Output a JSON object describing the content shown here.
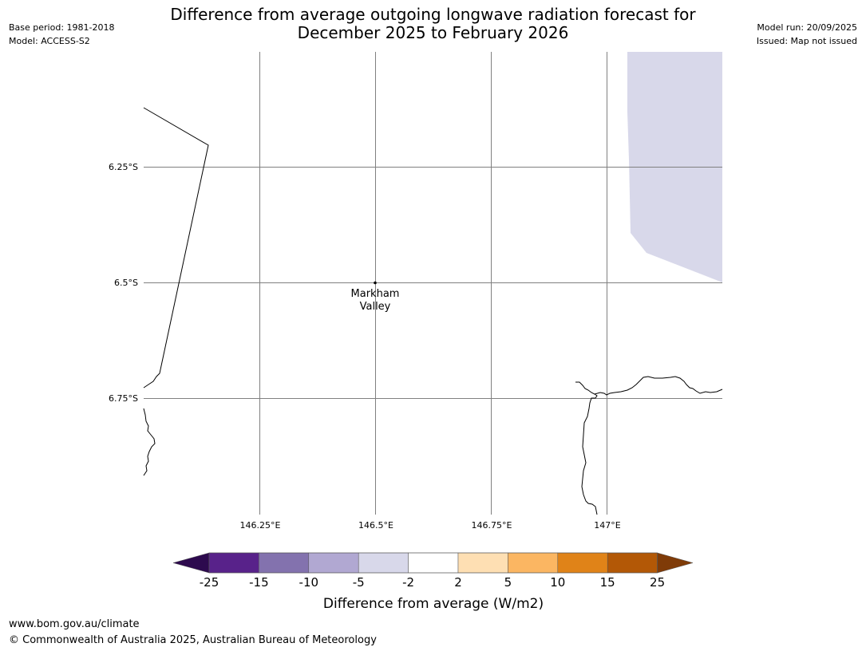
{
  "header": {
    "title_line1": "Difference from average outgoing longwave radiation forecast for",
    "title_line2": "December 2025 to February 2026",
    "base_period": "Base period: 1981-2018",
    "model": "Model: ACCESS-S2",
    "model_run": "Model run: 20/09/2025",
    "issued": "Issued: Map not issued"
  },
  "map": {
    "lat_labels": [
      "6.25°S",
      "6.5°S",
      "6.75°S"
    ],
    "lon_labels": [
      "146.25°E",
      "146.5°E",
      "146.75°E",
      "147°E"
    ],
    "place_name_line1": "Markham",
    "place_name_line2": "Valley",
    "anomaly_fill_color": "#d8d8ea"
  },
  "legend": {
    "ticks": [
      "-25",
      "-15",
      "-10",
      "-5",
      "-2",
      "2",
      "5",
      "10",
      "15",
      "25"
    ],
    "colors": [
      "#2d0a4e",
      "#58228a",
      "#8372ae",
      "#b1a8d2",
      "#d8d8ea",
      "#ffffff",
      "#fedfb3",
      "#fbb662",
      "#e08318",
      "#b35806",
      "#7f3b08"
    ],
    "label": "Difference from average (W/m2)"
  },
  "footer": {
    "url": "www.bom.gov.au/climate",
    "copyright": "© Commonwealth of Australia 2025, Australian Bureau of Meteorology"
  }
}
